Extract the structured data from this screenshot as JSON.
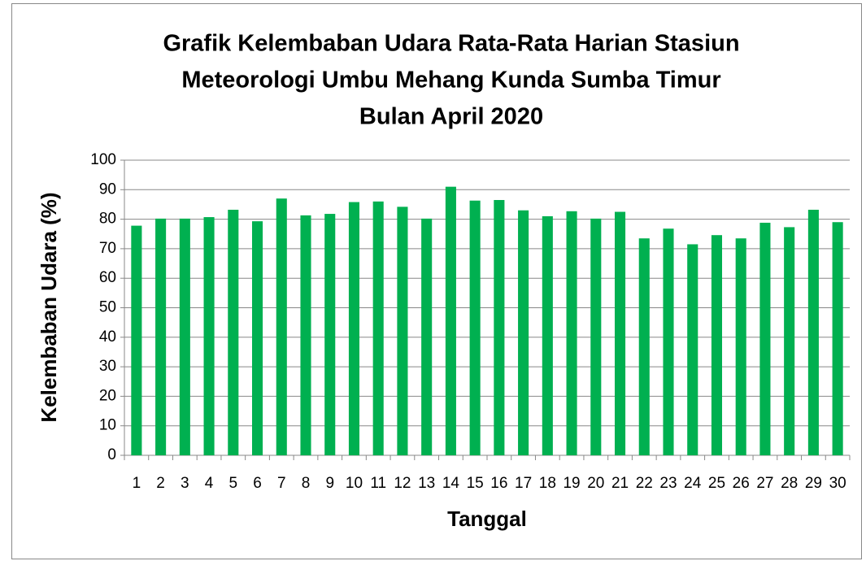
{
  "chart_data": {
    "type": "bar",
    "title": [
      "Grafik Kelembaban Udara Rata-Rata Harian Stasiun",
      "Meteorologi Umbu Mehang Kunda Sumba Timur",
      "Bulan April 2020"
    ],
    "x_label": "Tanggal",
    "y_label": "Kelembaban Udara (%)",
    "categories": [
      "1",
      "2",
      "3",
      "4",
      "5",
      "6",
      "7",
      "8",
      "9",
      "10",
      "11",
      "12",
      "13",
      "14",
      "15",
      "16",
      "17",
      "18",
      "19",
      "20",
      "21",
      "22",
      "23",
      "24",
      "25",
      "26",
      "27",
      "28",
      "29",
      "30"
    ],
    "values": [
      77.8,
      80.2,
      80.2,
      80.7,
      83.2,
      79.3,
      87,
      81.3,
      81.8,
      85.8,
      86,
      84.2,
      80.2,
      91,
      86.3,
      86.5,
      83,
      81,
      82.7,
      80.2,
      82.5,
      73.5,
      76.8,
      71.5,
      74.6,
      73.5,
      78.8,
      77.3,
      83.2,
      79
    ],
    "color": "#00b050",
    "ylim": [
      0,
      100
    ],
    "yticks": [
      0,
      10,
      20,
      30,
      40,
      50,
      60,
      70,
      80,
      90,
      100
    ],
    "grid": true
  }
}
